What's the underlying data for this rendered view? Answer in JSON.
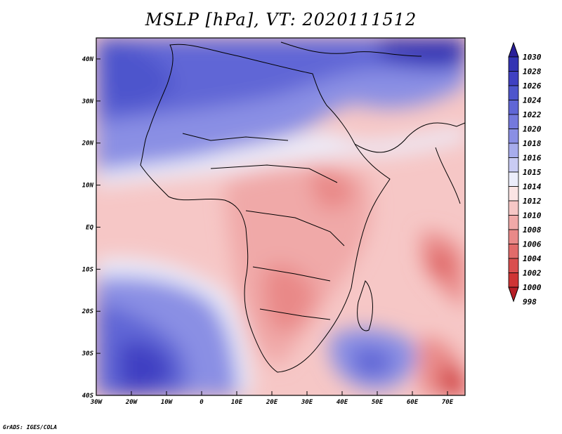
{
  "title": "MSLP [hPa], VT: 2020111512",
  "footer": "GrADS: IGES/COLA",
  "map": {
    "lat_labels": [
      "40N",
      "30N",
      "20N",
      "10N",
      "EQ",
      "10S",
      "20S",
      "30S",
      "40S"
    ],
    "lat_values": [
      40,
      30,
      20,
      10,
      0,
      -10,
      -20,
      -30,
      -40
    ],
    "lon_labels": [
      "30W",
      "20W",
      "10W",
      "0",
      "10E",
      "20E",
      "30E",
      "40E",
      "50E",
      "60E",
      "70E"
    ],
    "lon_values": [
      -30,
      -20,
      -10,
      0,
      10,
      20,
      30,
      40,
      50,
      60,
      70
    ],
    "extent": {
      "lon_min": -30,
      "lon_max": 75,
      "lat_min": -40,
      "lat_max": 45
    }
  },
  "colorbar": {
    "labels": [
      "1030",
      "1028",
      "1026",
      "1024",
      "1022",
      "1020",
      "1018",
      "1016",
      "1015",
      "1014",
      "1012",
      "1010",
      "1008",
      "1006",
      "1004",
      "1002",
      "1000",
      "998"
    ],
    "colors": [
      "#2a1f9a",
      "#3333b3",
      "#3f40c2",
      "#4e55cc",
      "#6066d6",
      "#7479dd",
      "#8a8fe4",
      "#a7acec",
      "#c9cbf3",
      "#ecedfb",
      "#fbe4e4",
      "#f6c7c6",
      "#f0a9a8",
      "#e98988",
      "#e26b6a",
      "#d94e4e",
      "#cf3434",
      "#b71e26"
    ]
  }
}
